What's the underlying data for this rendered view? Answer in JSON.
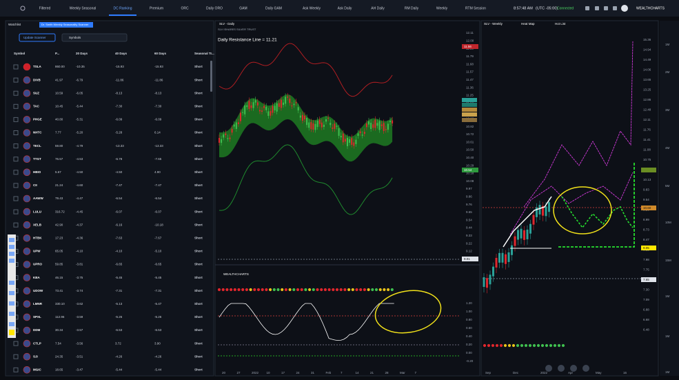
{
  "nav": {
    "tabs": [
      "Filtered",
      "Weekly Seasonal",
      "DC Ranking",
      "Premium",
      "ORC",
      "Daily ORO",
      "GAM",
      "Daily GAM",
      "Ask Weekly",
      "Ask Daily",
      "AH Daily",
      "RM Daily",
      "Weekly",
      "RTM Session"
    ],
    "time": "8:57:48 AM",
    "timezone": "(UTC -05:00)",
    "status": "Connected",
    "brand": "WEALTHCHARTS"
  },
  "watchlist": {
    "label": "Watchlist",
    "scanner": "Dr. Smith Weekly Seasonality Scanner",
    "button": "Update Scanner",
    "symbols": "Symbols",
    "columns": [
      "Symbol",
      "P...",
      "20 Days",
      "40 Days",
      "60 Days",
      "Seasonal Tr..."
    ],
    "rows": [
      [
        "TSLA",
        "860.00",
        "-10.35",
        "-15.93",
        "-15.93",
        "Short"
      ],
      [
        "DIVB",
        "41.97",
        "-6.79",
        "-11.86",
        "-11.86",
        "Short"
      ],
      [
        "SUZ",
        "10.59",
        "-6.05",
        "-8.13",
        "-8.13",
        "Short"
      ],
      [
        "TAC",
        "10.45",
        "-5.44",
        "-7.30",
        "-7.30",
        "Short"
      ],
      [
        "PHGE",
        "40.80",
        "-5.31",
        "-6.09",
        "-6.09",
        "Short"
      ],
      [
        "NHTC",
        "7.77",
        "-5.20",
        "-5.28",
        "6.14",
        "Short"
      ],
      [
        "TECL",
        "59.80",
        "-4.79",
        "-13.33",
        "-13.33",
        "Short"
      ],
      [
        "TTGT",
        "76.57",
        "-4.53",
        "-6.78",
        "-7.65",
        "Short"
      ],
      [
        "HBIO",
        "5.67",
        "-4.50",
        "-4.50",
        "4.90",
        "Short"
      ],
      [
        "CII",
        "21.24",
        "-4.60",
        "-7.47",
        "-7.47",
        "Short"
      ],
      [
        "AAWW",
        "79.43",
        "-4.47",
        "-6.54",
        "-6.54",
        "Short"
      ],
      [
        "LULU",
        "316.72",
        "-4.45",
        "-6.07",
        "-6.07",
        "Short"
      ],
      [
        "XELB",
        "42.90",
        "-4.37",
        "-6.16",
        "-10.18",
        "Short"
      ],
      [
        "HTBK",
        "17.23",
        "-4.36",
        "-7.63",
        "-7.67",
        "Short"
      ],
      [
        "UPW",
        "65.05",
        "-4.10",
        "-4.10",
        "-5.10",
        "Short"
      ],
      [
        "UPRO",
        "59.85",
        "-3.81",
        "-6.65",
        "-6.65",
        "Short"
      ],
      [
        "KBA",
        "46.15",
        "-3.75",
        "-5.45",
        "-5.45",
        "Short"
      ],
      [
        "UDOW",
        "73.41",
        "-3.74",
        "-7.31",
        "-7.31",
        "Short"
      ],
      [
        "LMNR",
        "330.10",
        "-3.62",
        "-5.13",
        "-5.47",
        "Short"
      ],
      [
        "SPXL",
        "112.96",
        "-3.59",
        "-5.26",
        "-5.26",
        "Short"
      ],
      [
        "DDM",
        "30.34",
        "-3.57",
        "-6.53",
        "-6.53",
        "Short"
      ],
      [
        "CTLP",
        "7.54",
        "-3.56",
        "3.72",
        "3.90",
        "Short"
      ],
      [
        "SJI",
        "24.35",
        "-3.51",
        "-4.26",
        "-4.26",
        "Short"
      ],
      [
        "MGIC",
        "18.65",
        "-3.47",
        "-5.44",
        "-5.44",
        "Short"
      ]
    ]
  },
  "daily_chart": {
    "tab": "SLV - Daily",
    "header": "SLV ISHARES SILVER TRUST",
    "study": "Daily Resistance Line = 11.21",
    "brand": "WEALTHCHARTS",
    "yaxis": [
      "12.11",
      "12.00",
      "11.89",
      "11.79",
      "11.68",
      "11.57",
      "11.47",
      "11.36",
      "11.25",
      "11.14",
      "11.04",
      "10.93",
      "10.82",
      "10.72",
      "10.61",
      "10.50",
      "10.40",
      "10.29",
      "10.18",
      "10.08",
      "9.97",
      "9.86",
      "9.76",
      "9.65",
      "9.54",
      "9.44",
      "9.33",
      "9.22",
      "9.12"
    ],
    "last_price": "9.01",
    "resistance_tag": "11.56",
    "support_tag": "10.54",
    "osc_axis": [
      "1.20",
      "1.00",
      "0.80",
      "0.60",
      "0.40",
      "0.20",
      "0.00",
      "-0.20"
    ],
    "xaxis": [
      "20",
      "27",
      "2022",
      "10",
      "17",
      "24",
      "31",
      "Feb",
      "7",
      "14",
      "21",
      "28",
      "Mar",
      "7"
    ]
  },
  "weekly_chart": {
    "tabs": [
      "SLV - Weekly",
      "Heat Map",
      "Hot List"
    ],
    "yaxis": [
      "15.36",
      "14.94",
      "14.49",
      "14.06",
      "13.65",
      "13.25",
      "12.86",
      "12.48",
      "12.11",
      "11.76",
      "11.41",
      "11.08",
      "10.75",
      "10.44",
      "10.13",
      "9.83",
      "9.54",
      "9.26",
      "8.99",
      "8.73",
      "8.47",
      "8.22",
      "7.98",
      "7.75",
      "7.52",
      "7.30",
      "7.09",
      "6.88",
      "6.68",
      "6.48"
    ],
    "price_tag": "10.60",
    "low_tag": "9.05",
    "last_tag": "7.65",
    "xaxis": [
      "Sep",
      "Dec",
      "2022",
      "Apr",
      "May",
      "16"
    ]
  },
  "volume_axis": [
    "1M",
    "2M",
    "3M",
    "4M",
    "5M",
    "10M",
    "15M",
    "1M",
    "1M",
    "1M"
  ]
}
